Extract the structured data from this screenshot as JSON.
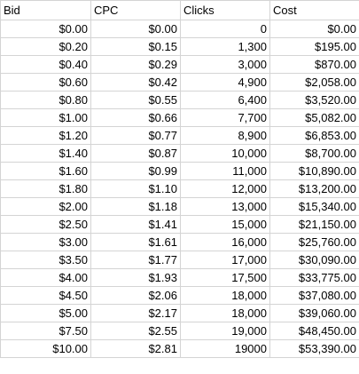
{
  "columns": [
    "Bid",
    "CPC",
    "Clicks",
    "Cost"
  ],
  "rows": [
    [
      "$0.00",
      "$0.00",
      "0",
      "$0.00"
    ],
    [
      "$0.20",
      "$0.15",
      "1,300",
      "$195.00"
    ],
    [
      "$0.40",
      "$0.29",
      "3,000",
      "$870.00"
    ],
    [
      "$0.60",
      "$0.42",
      "4,900",
      "$2,058.00"
    ],
    [
      "$0.80",
      "$0.55",
      "6,400",
      "$3,520.00"
    ],
    [
      "$1.00",
      "$0.66",
      "7,700",
      "$5,082.00"
    ],
    [
      "$1.20",
      "$0.77",
      "8,900",
      "$6,853.00"
    ],
    [
      "$1.40",
      "$0.87",
      "10,000",
      "$8,700.00"
    ],
    [
      "$1.60",
      "$0.99",
      "11,000",
      "$10,890.00"
    ],
    [
      "$1.80",
      "$1.10",
      "12,000",
      "$13,200.00"
    ],
    [
      "$2.00",
      "$1.18",
      "13,000",
      "$15,340.00"
    ],
    [
      "$2.50",
      "$1.41",
      "15,000",
      "$21,150.00"
    ],
    [
      "$3.00",
      "$1.61",
      "16,000",
      "$25,760.00"
    ],
    [
      "$3.50",
      "$1.77",
      "17,000",
      "$30,090.00"
    ],
    [
      "$4.00",
      "$1.93",
      "17,500",
      "$33,775.00"
    ],
    [
      "$4.50",
      "$2.06",
      "18,000",
      "$37,080.00"
    ],
    [
      "$5.00",
      "$2.17",
      "18,000",
      "$39,060.00"
    ],
    [
      "$7.50",
      "$2.55",
      "19,000",
      "$48,450.00"
    ],
    [
      "$10.00",
      "$2.81",
      "19000",
      "$53,390.00"
    ]
  ]
}
